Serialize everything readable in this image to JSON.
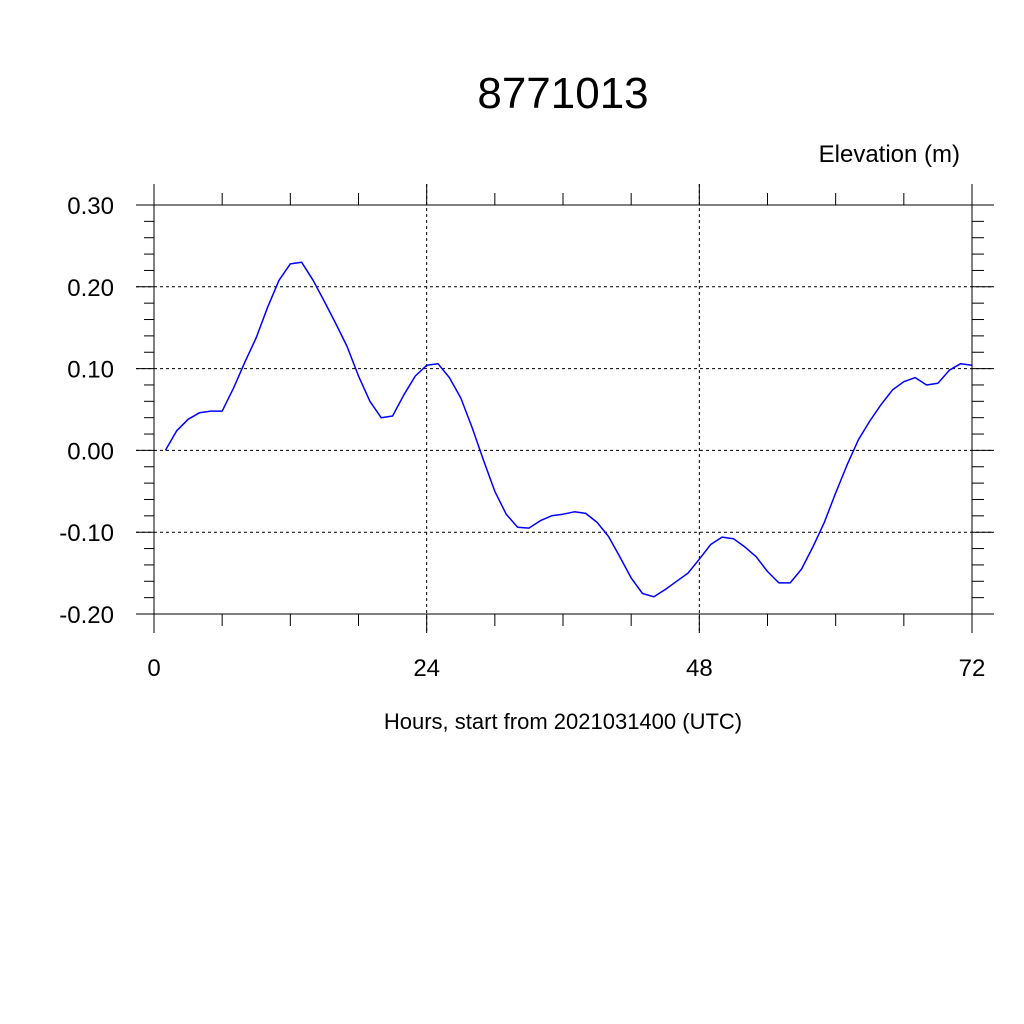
{
  "chart_data": {
    "type": "line",
    "title": "8771013",
    "ylabel": "Elevation (m)",
    "xlabel": "Hours, start from 2021031400 (UTC)",
    "xlim": [
      0,
      72
    ],
    "ylim": [
      -0.2,
      0.3
    ],
    "x_ticks": [
      0,
      24,
      48,
      72
    ],
    "x_tick_labels": [
      "0",
      "24",
      "48",
      "72"
    ],
    "y_ticks": [
      -0.2,
      -0.1,
      0.0,
      0.1,
      0.2,
      0.3
    ],
    "y_tick_labels": [
      "-0.20",
      "-0.10",
      "0.00",
      "0.10",
      "0.20",
      "0.30"
    ],
    "grid": true,
    "series_color": "#0000ff",
    "series": [
      {
        "x": [
          1,
          2,
          3,
          4,
          5,
          6,
          7,
          8,
          9,
          10,
          11,
          12,
          13,
          14,
          15,
          16,
          17,
          18,
          19,
          20,
          21,
          22,
          23,
          24,
          25,
          26,
          27,
          28,
          29,
          30,
          31,
          32,
          33,
          34,
          35,
          36,
          37,
          38,
          39,
          40,
          41,
          42,
          43,
          44,
          45,
          46,
          47,
          48,
          49,
          50,
          51,
          52,
          53,
          54,
          55,
          56,
          57,
          58,
          59,
          60,
          61,
          62,
          63,
          64,
          65,
          66,
          67,
          68,
          69,
          70,
          71,
          72
        ],
        "values": [
          0.0,
          0.024,
          0.038,
          0.046,
          0.048,
          0.048,
          0.076,
          0.108,
          0.138,
          0.175,
          0.208,
          0.228,
          0.23,
          0.208,
          0.182,
          0.155,
          0.127,
          0.091,
          0.06,
          0.04,
          0.042,
          0.068,
          0.091,
          0.104,
          0.106,
          0.089,
          0.064,
          0.028,
          -0.012,
          -0.05,
          -0.078,
          -0.094,
          -0.095,
          -0.086,
          -0.08,
          -0.078,
          -0.075,
          -0.077,
          -0.088,
          -0.105,
          -0.13,
          -0.156,
          -0.175,
          -0.179,
          -0.17,
          -0.16,
          -0.15,
          -0.133,
          -0.115,
          -0.106,
          -0.108,
          -0.118,
          -0.13,
          -0.148,
          -0.162,
          -0.162,
          -0.145,
          -0.118,
          -0.088,
          -0.052,
          -0.018,
          0.013,
          0.036,
          0.056,
          0.074,
          0.084,
          0.089,
          0.08,
          0.082,
          0.098,
          0.106,
          0.104
        ]
      }
    ]
  }
}
